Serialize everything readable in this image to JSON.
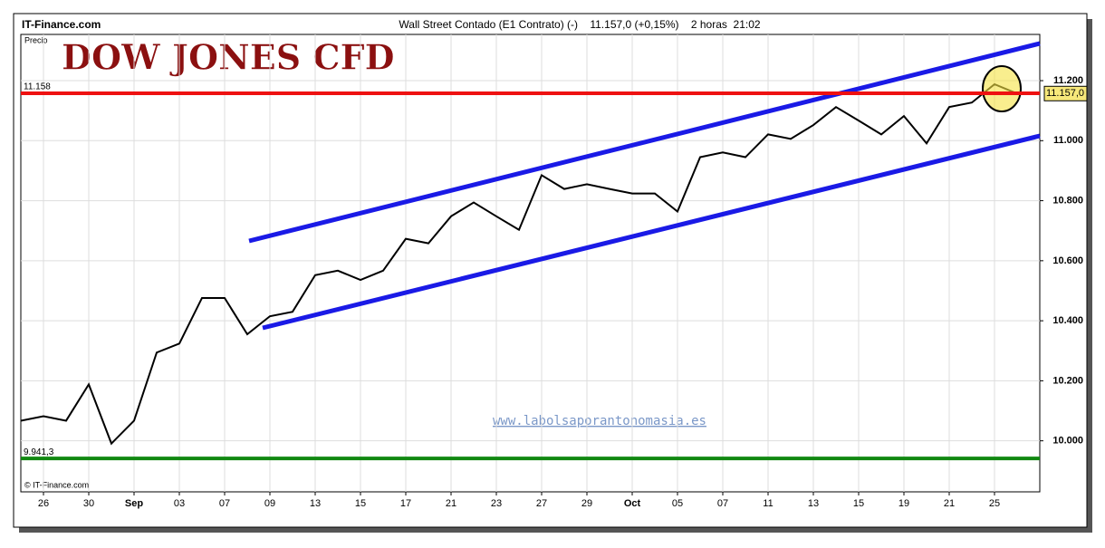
{
  "chart_data": {
    "type": "line",
    "source": "IT-Finance.com",
    "subtitle": "Wall Street Contado (E1 Contrato) (-)    11.157,0 (+0,15%)    2 horas  21:02",
    "ylabel": "Precio",
    "title": "DOW JONES CFD",
    "watermark": "www.labolsaporantonomasia.es",
    "copyright": "© IT-Finance.com",
    "categories": [
      null,
      "26",
      null,
      "30",
      null,
      "Sep",
      null,
      "03",
      null,
      "07",
      null,
      "09",
      null,
      "13",
      null,
      "15",
      null,
      "17",
      null,
      "21",
      null,
      "23",
      null,
      "27",
      null,
      "29",
      null,
      "Oct",
      null,
      "05",
      null,
      "07",
      null,
      "11",
      null,
      "13",
      null,
      "15",
      null,
      "19",
      null,
      "21",
      null,
      "25",
      null,
      null
    ],
    "series": [
      {
        "color": "#000000",
        "values": [
          10067,
          10082,
          10067,
          10188,
          9991,
          10067,
          10294,
          10324,
          10476,
          10476,
          10355,
          10415,
          10430,
          10552,
          10567,
          10536,
          10567,
          10673,
          10658,
          10748,
          10794,
          10748,
          10703,
          10885,
          10839,
          10855,
          10839,
          10824,
          10824,
          10764,
          10945,
          10961,
          10945,
          11021,
          11006,
          11052,
          11112,
          11067,
          11021,
          11082,
          10991,
          11112,
          11127,
          11188,
          11157,
          null
        ]
      }
    ],
    "ylim": [
      9830,
      11354
    ],
    "yticks": [
      {
        "value": 10000,
        "label": "10.000"
      },
      {
        "value": 10200,
        "label": "10.200"
      },
      {
        "value": 10400,
        "label": "10.400"
      },
      {
        "value": 10600,
        "label": "10.600"
      },
      {
        "value": 10800,
        "label": "10.800"
      },
      {
        "value": 11000,
        "label": "11.000"
      },
      {
        "value": 11200,
        "label": "11.200"
      }
    ],
    "hlines": [
      {
        "value": 11158,
        "label": "11.158",
        "color": "#ee1111"
      },
      {
        "value": 9941.3,
        "label": "9.941,3",
        "color": "#118811"
      }
    ],
    "last_price": {
      "value": 11157,
      "label": "11.157,0"
    },
    "grid": true
  }
}
